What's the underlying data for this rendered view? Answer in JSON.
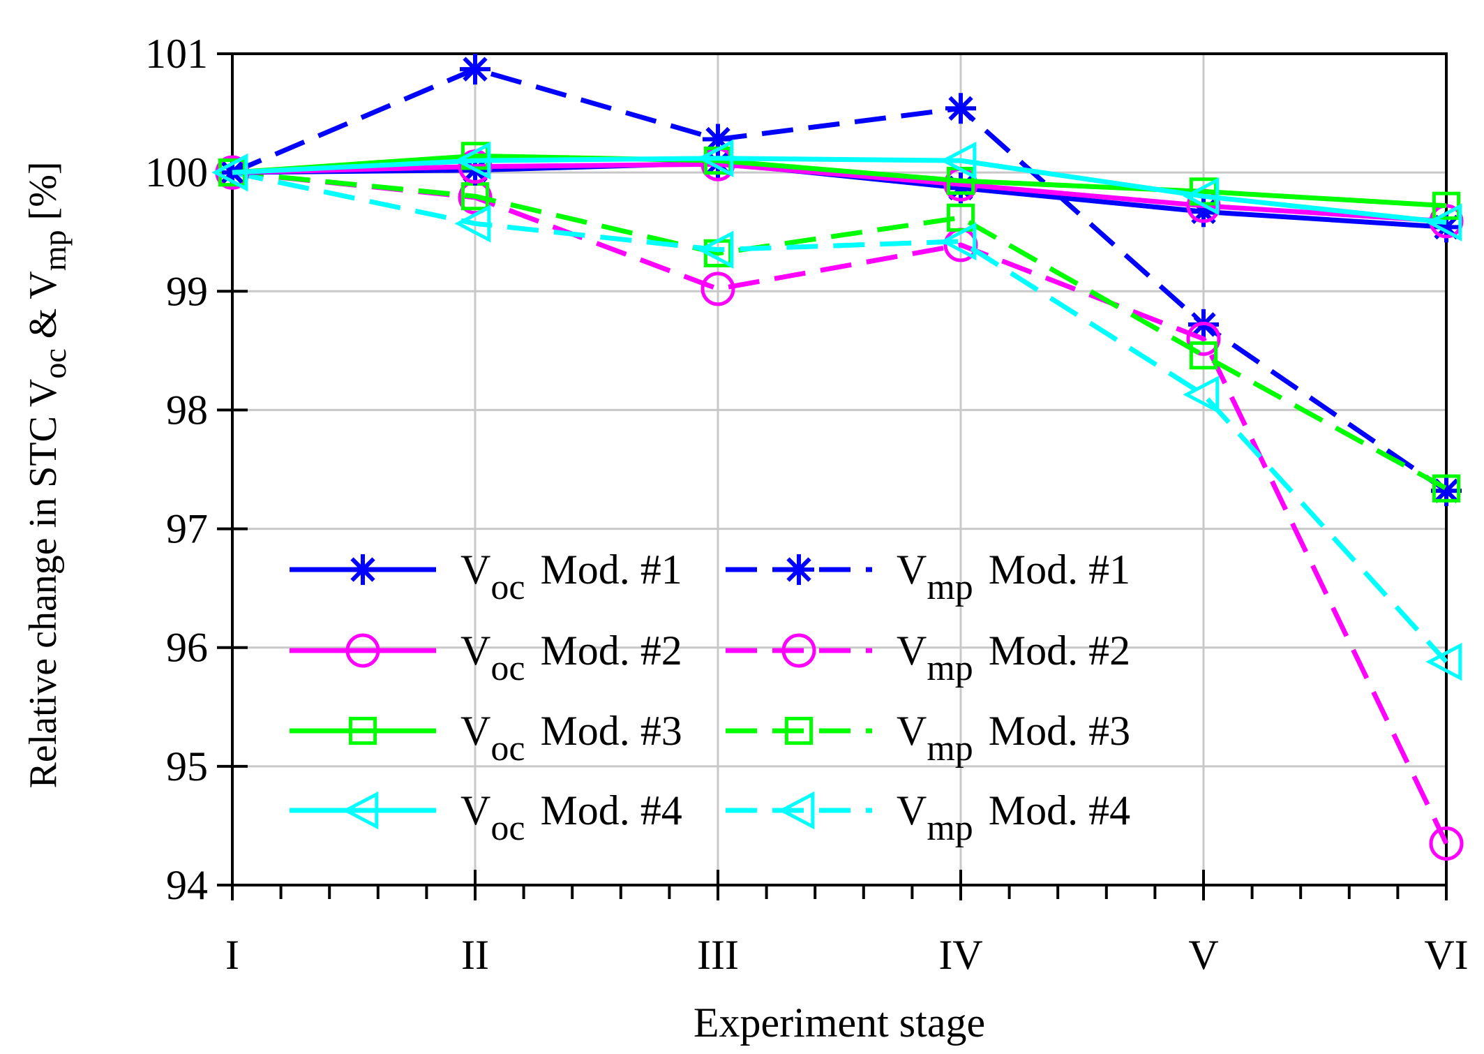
{
  "chart_data": {
    "type": "line",
    "title": "",
    "xlabel": "Experiment stage",
    "ylabel": {
      "text": "Relative change in STC V",
      "sub1": "oc",
      "mid": " & V",
      "sub2": "mp",
      "tail": " [%]"
    },
    "categories": [
      "I",
      "II",
      "III",
      "IV",
      "V",
      "VI"
    ],
    "ylim": [
      94,
      101
    ],
    "yticks": [
      94,
      95,
      96,
      97,
      98,
      99,
      100,
      101
    ],
    "grid": true,
    "legend_position": "bottom-left",
    "series": [
      {
        "name": "Voc Mod. #1",
        "quantity": "V",
        "sub": "oc",
        "label": "Mod. #1",
        "color": "#0000ff",
        "dash": "solid",
        "marker": "asterisk",
        "values": [
          100,
          100.02,
          100.08,
          99.87,
          99.67,
          99.54
        ]
      },
      {
        "name": "Voc Mod. #2",
        "quantity": "V",
        "sub": "oc",
        "label": "Mod. #2",
        "color": "#ff00ff",
        "dash": "solid",
        "marker": "circle",
        "values": [
          100,
          100.05,
          100.07,
          99.9,
          99.72,
          99.59
        ]
      },
      {
        "name": "Voc Mod. #3",
        "quantity": "V",
        "sub": "oc",
        "label": "Mod. #3",
        "color": "#00ff00",
        "dash": "solid",
        "marker": "square",
        "values": [
          100,
          100.14,
          100.1,
          99.93,
          99.84,
          99.72
        ]
      },
      {
        "name": "Voc Mod. #4",
        "quantity": "V",
        "sub": "oc",
        "label": "Mod. #4",
        "color": "#00ffff",
        "dash": "solid",
        "marker": "triangle-left",
        "values": [
          100,
          100.1,
          100.12,
          100.1,
          99.8,
          99.58
        ]
      },
      {
        "name": "Vmp Mod. #1",
        "quantity": "V",
        "sub": "mp",
        "label": "Mod. #1",
        "color": "#0000ff",
        "dash": "dashed",
        "marker": "asterisk",
        "values": [
          100,
          100.87,
          100.28,
          100.54,
          98.72,
          97.32
        ]
      },
      {
        "name": "Vmp Mod. #2",
        "quantity": "V",
        "sub": "mp",
        "label": "Mod. #2",
        "color": "#ff00ff",
        "dash": "dashed",
        "marker": "circle",
        "values": [
          100,
          99.79,
          99.02,
          99.39,
          98.6,
          94.35
        ]
      },
      {
        "name": "Vmp Mod. #3",
        "quantity": "V",
        "sub": "mp",
        "label": "Mod. #3",
        "color": "#00ff00",
        "dash": "dashed",
        "marker": "square",
        "values": [
          100,
          99.8,
          99.32,
          99.62,
          98.46,
          97.34
        ]
      },
      {
        "name": "Vmp Mod. #4",
        "quantity": "V",
        "sub": "mp",
        "label": "Mod. #4",
        "color": "#00ffff",
        "dash": "dashed",
        "marker": "triangle-left",
        "values": [
          100,
          99.57,
          99.35,
          99.42,
          98.13,
          95.88
        ]
      }
    ]
  }
}
